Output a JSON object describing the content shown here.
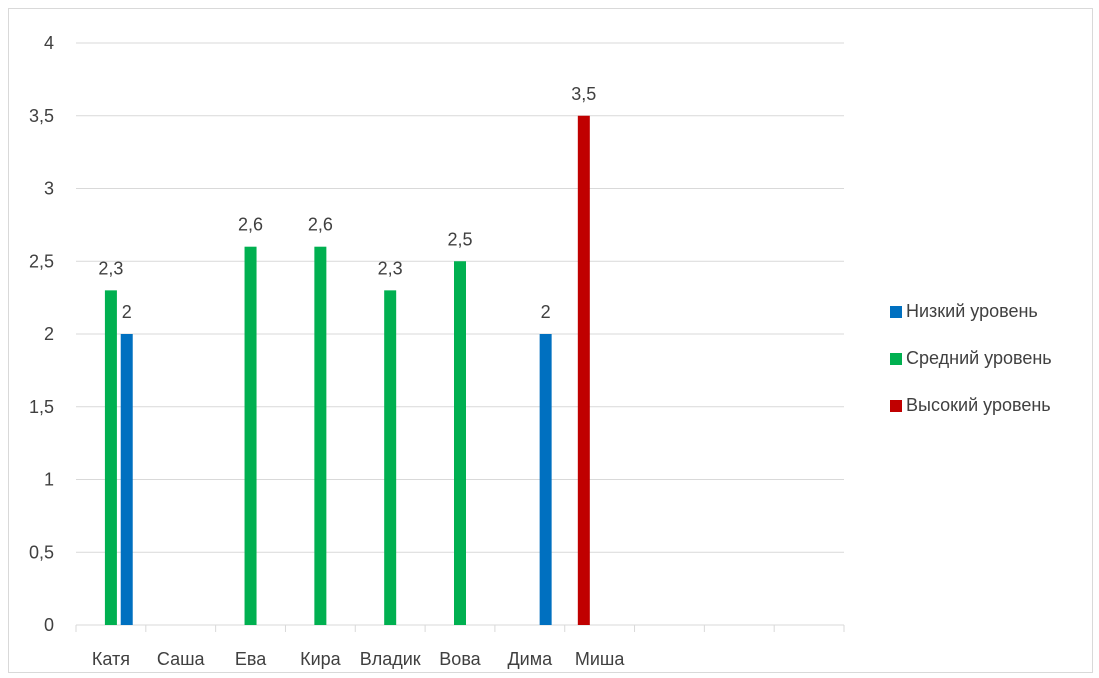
{
  "chart_data": {
    "type": "bar",
    "categories": [
      "Катя",
      "Саша",
      "Ева",
      "Кира",
      "Владик",
      "Вова",
      "Дима",
      "Миша",
      "",
      "",
      ""
    ],
    "series": [
      {
        "name": "Низкий уровень",
        "color": "#0070C0",
        "values": [
          null,
          2,
          null,
          null,
          null,
          null,
          null,
          2,
          null,
          null,
          null
        ]
      },
      {
        "name": "Средний уровень",
        "color": "#00B050",
        "values": [
          2.3,
          null,
          2.6,
          2.6,
          2.3,
          2.5,
          null,
          null,
          null,
          null,
          null
        ]
      },
      {
        "name": "Высокий уровень",
        "color": "#C00000",
        "values": [
          null,
          null,
          null,
          null,
          null,
          null,
          3.5,
          null,
          null,
          null,
          null
        ]
      }
    ],
    "data_labels": [
      "2,3",
      "2",
      "2,6",
      "2,6",
      "2,3",
      "2,5",
      "3,5",
      "2"
    ],
    "y_tick_labels": [
      "0",
      "0,5",
      "1",
      "1,5",
      "2",
      "2,5",
      "3",
      "3,5",
      "4"
    ],
    "ylim": [
      0,
      4
    ],
    "y_step": 0.5,
    "grid": true,
    "legend_position": "right",
    "title": "",
    "xlabel": "",
    "ylabel": ""
  }
}
